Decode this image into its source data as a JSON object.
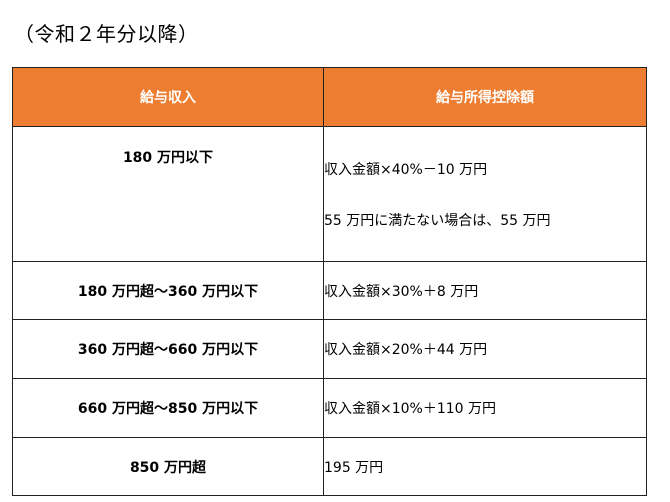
{
  "caption": "（令和２年分以降）",
  "table": {
    "header_color": "#ed7d31",
    "headers": [
      "給与収入",
      "給与所得控除額"
    ],
    "rows": [
      {
        "income": "180 万円以下",
        "amount_lines": [
          "収入金額×40%－10 万円",
          "55 万円に満たない場合は、55 万円"
        ]
      },
      {
        "income": "180 万円超～360 万円以下",
        "amount_lines": [
          "収入金額×30%＋8 万円"
        ]
      },
      {
        "income": "360 万円超～660 万円以下",
        "amount_lines": [
          "収入金額×20%＋44 万円"
        ]
      },
      {
        "income": "660 万円超～850 万円以下",
        "amount_lines": [
          "収入金額×10%＋110 万円"
        ]
      },
      {
        "income": "850 万円超",
        "amount_lines": [
          "195 万円"
        ]
      }
    ]
  }
}
